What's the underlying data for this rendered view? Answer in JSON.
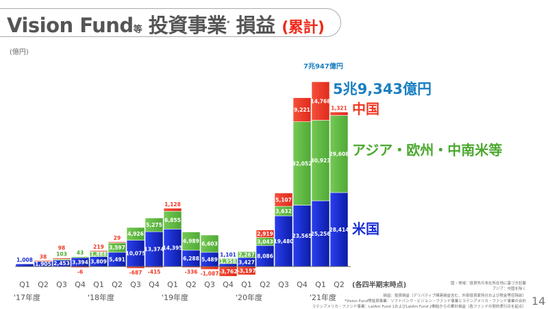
{
  "header": {
    "title_main": "Vision Fund",
    "title_small": "等",
    "title_jp": "投資事業",
    "title_mark": "*",
    "title_jp2": "損益",
    "title_red": "(累計)"
  },
  "unit": "(億円)",
  "period_note": "(各四半期末時点)",
  "callouts": {
    "peak_total": "7兆947億円",
    "latest_total": "5兆9,343億円"
  },
  "footnotes": [
    "国・地域：投資先の本社所在地に基づき記載",
    "アジア：中国を除く",
    "損益：投資損益（デリバティブ関連損益含む、外部投資家持分および税金等控除前）",
    "*Vision Fund等投資事業：ソフトバンク・ビジョン・ファンド事業とラテンアメリカ・ファンド事業の合計",
    "ラテンアメリカ・ファンド事業：LatAm Fund 1およびLatAm Fund 2開始からの累計損益（各ファンドの契約実行日を起点）"
  ],
  "page_number": "14",
  "colors": {
    "us": "#1b2fd6",
    "asia": "#62bb46",
    "china": "#ef3a26",
    "callout": "#1a7fc1"
  },
  "chart_data": {
    "type": "bar",
    "stacked": true,
    "categories": [
      "Q1",
      "Q2",
      "Q3",
      "Q4",
      "Q1",
      "Q2",
      "Q3",
      "Q4",
      "Q1",
      "Q2",
      "Q3",
      "Q4",
      "Q1",
      "Q2",
      "Q3",
      "Q4",
      "Q1",
      "Q2"
    ],
    "year_labels": [
      {
        "label": "'17年度",
        "start_index": 0
      },
      {
        "label": "'18年度",
        "start_index": 4
      },
      {
        "label": "'19年度",
        "start_index": 8
      },
      {
        "label": "'20年度",
        "start_index": 12
      },
      {
        "label": "'21年度",
        "start_index": 16
      }
    ],
    "series": [
      {
        "name": "米国",
        "key": "us",
        "values": [
          1008,
          1905,
          2453,
          3394,
          3809,
          5491,
          10075,
          13374,
          14395,
          6288,
          5489,
          1101,
          3427,
          8086,
          19480,
          23565,
          25256,
          28414
        ]
      },
      {
        "name": "アジア・欧州・中南米等",
        "key": "asia",
        "values": [
          0,
          0,
          103,
          43,
          1888,
          3597,
          4926,
          5275,
          6855,
          6989,
          6603,
          1958,
          2267,
          3043,
          3632,
          32052,
          30923,
          29608
        ]
      },
      {
        "name": "中国",
        "key": "china",
        "values": [
          0,
          38,
          98,
          -6,
          219,
          29,
          -687,
          -415,
          1128,
          -336,
          -1087,
          -3762,
          -3197,
          2919,
          5107,
          9221,
          14768,
          1321
        ]
      }
    ],
    "ylabel": "(億円)",
    "legend": "right"
  }
}
